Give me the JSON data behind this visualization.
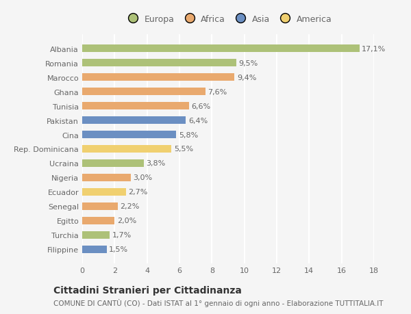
{
  "countries": [
    "Albania",
    "Romania",
    "Marocco",
    "Ghana",
    "Tunisia",
    "Pakistan",
    "Cina",
    "Rep. Dominicana",
    "Ucraina",
    "Nigeria",
    "Ecuador",
    "Senegal",
    "Egitto",
    "Turchia",
    "Filippine"
  ],
  "values": [
    17.1,
    9.5,
    9.4,
    7.6,
    6.6,
    6.4,
    5.8,
    5.5,
    3.8,
    3.0,
    2.7,
    2.2,
    2.0,
    1.7,
    1.5
  ],
  "labels": [
    "17,1%",
    "9,5%",
    "9,4%",
    "7,6%",
    "6,6%",
    "6,4%",
    "5,8%",
    "5,5%",
    "3,8%",
    "3,0%",
    "2,7%",
    "2,2%",
    "2,0%",
    "1,7%",
    "1,5%"
  ],
  "colors": [
    "#adc178",
    "#adc178",
    "#e9a96e",
    "#e9a96e",
    "#e9a96e",
    "#6b8fc2",
    "#6b8fc2",
    "#f0d070",
    "#adc178",
    "#e9a96e",
    "#f0d070",
    "#e9a96e",
    "#e9a96e",
    "#adc178",
    "#6b8fc2"
  ],
  "regions": [
    "Europa",
    "Africa",
    "Asia",
    "America"
  ],
  "legend_colors": [
    "#adc178",
    "#e9a96e",
    "#6b8fc2",
    "#f0d070"
  ],
  "title": "Cittadini Stranieri per Cittadinanza",
  "subtitle": "COMUNE DI CANTÙ (CO) - Dati ISTAT al 1° gennaio di ogni anno - Elaborazione TUTTITALIA.IT",
  "xlim": [
    0,
    18
  ],
  "xticks": [
    0,
    2,
    4,
    6,
    8,
    10,
    12,
    14,
    16,
    18
  ],
  "background_color": "#f5f5f5",
  "bar_height": 0.55,
  "grid_color": "#ffffff",
  "title_fontsize": 10,
  "subtitle_fontsize": 7.5,
  "tick_fontsize": 8,
  "label_fontsize": 8
}
